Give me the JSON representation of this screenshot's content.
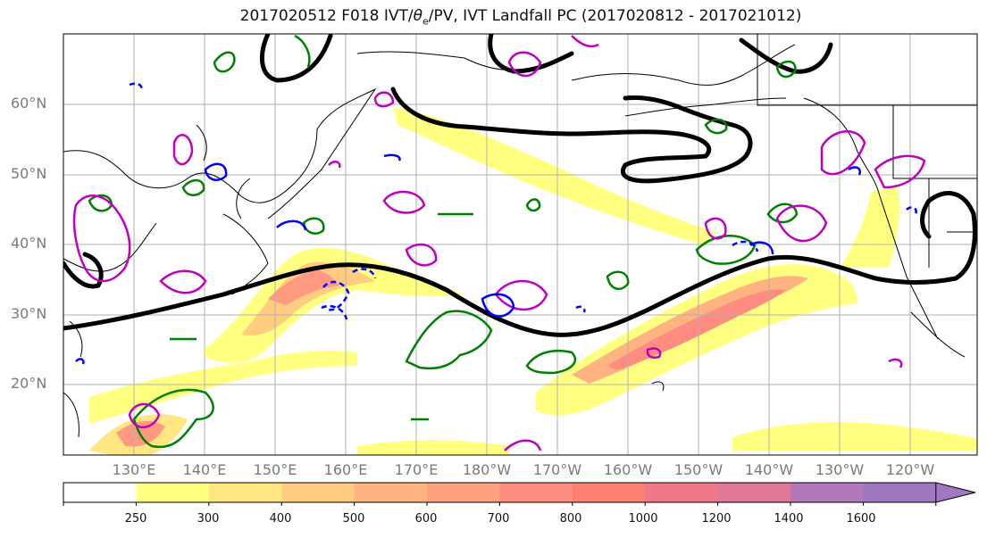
{
  "title": {
    "prefix": "2017020512 F018 IVT/",
    "theta": "θ",
    "theta_sub": "e",
    "suffix": "/PV, IVT Landfall PC (2017020812 - 2017021012)"
  },
  "map": {
    "lat_labels": [
      "60°N",
      "50°N",
      "40°N",
      "30°N",
      "20°N"
    ],
    "lon_labels": [
      "130°E",
      "140°E",
      "150°E",
      "160°E",
      "170°E",
      "180°W",
      "170°W",
      "160°W",
      "150°W",
      "140°W",
      "130°W",
      "120°W"
    ]
  },
  "colorbar": {
    "levels": [
      "250",
      "300",
      "400",
      "500",
      "600",
      "700",
      "800",
      "1000",
      "1200",
      "1400",
      "1600"
    ],
    "colors": [
      "#ffffff",
      "#ffff80",
      "#ffe680",
      "#ffcc80",
      "#ffb380",
      "#ffa080",
      "#ff8c80",
      "#ff8070",
      "#f07888",
      "#e07898",
      "#b078b8",
      "#a078c0"
    ]
  },
  "colors": {
    "jet": "#000000",
    "theta_e": "#008000",
    "pv_pos": "#c000c0",
    "pv_neg": "#0000ff",
    "coast": "#000000",
    "grid": "#b0b0b0"
  }
}
